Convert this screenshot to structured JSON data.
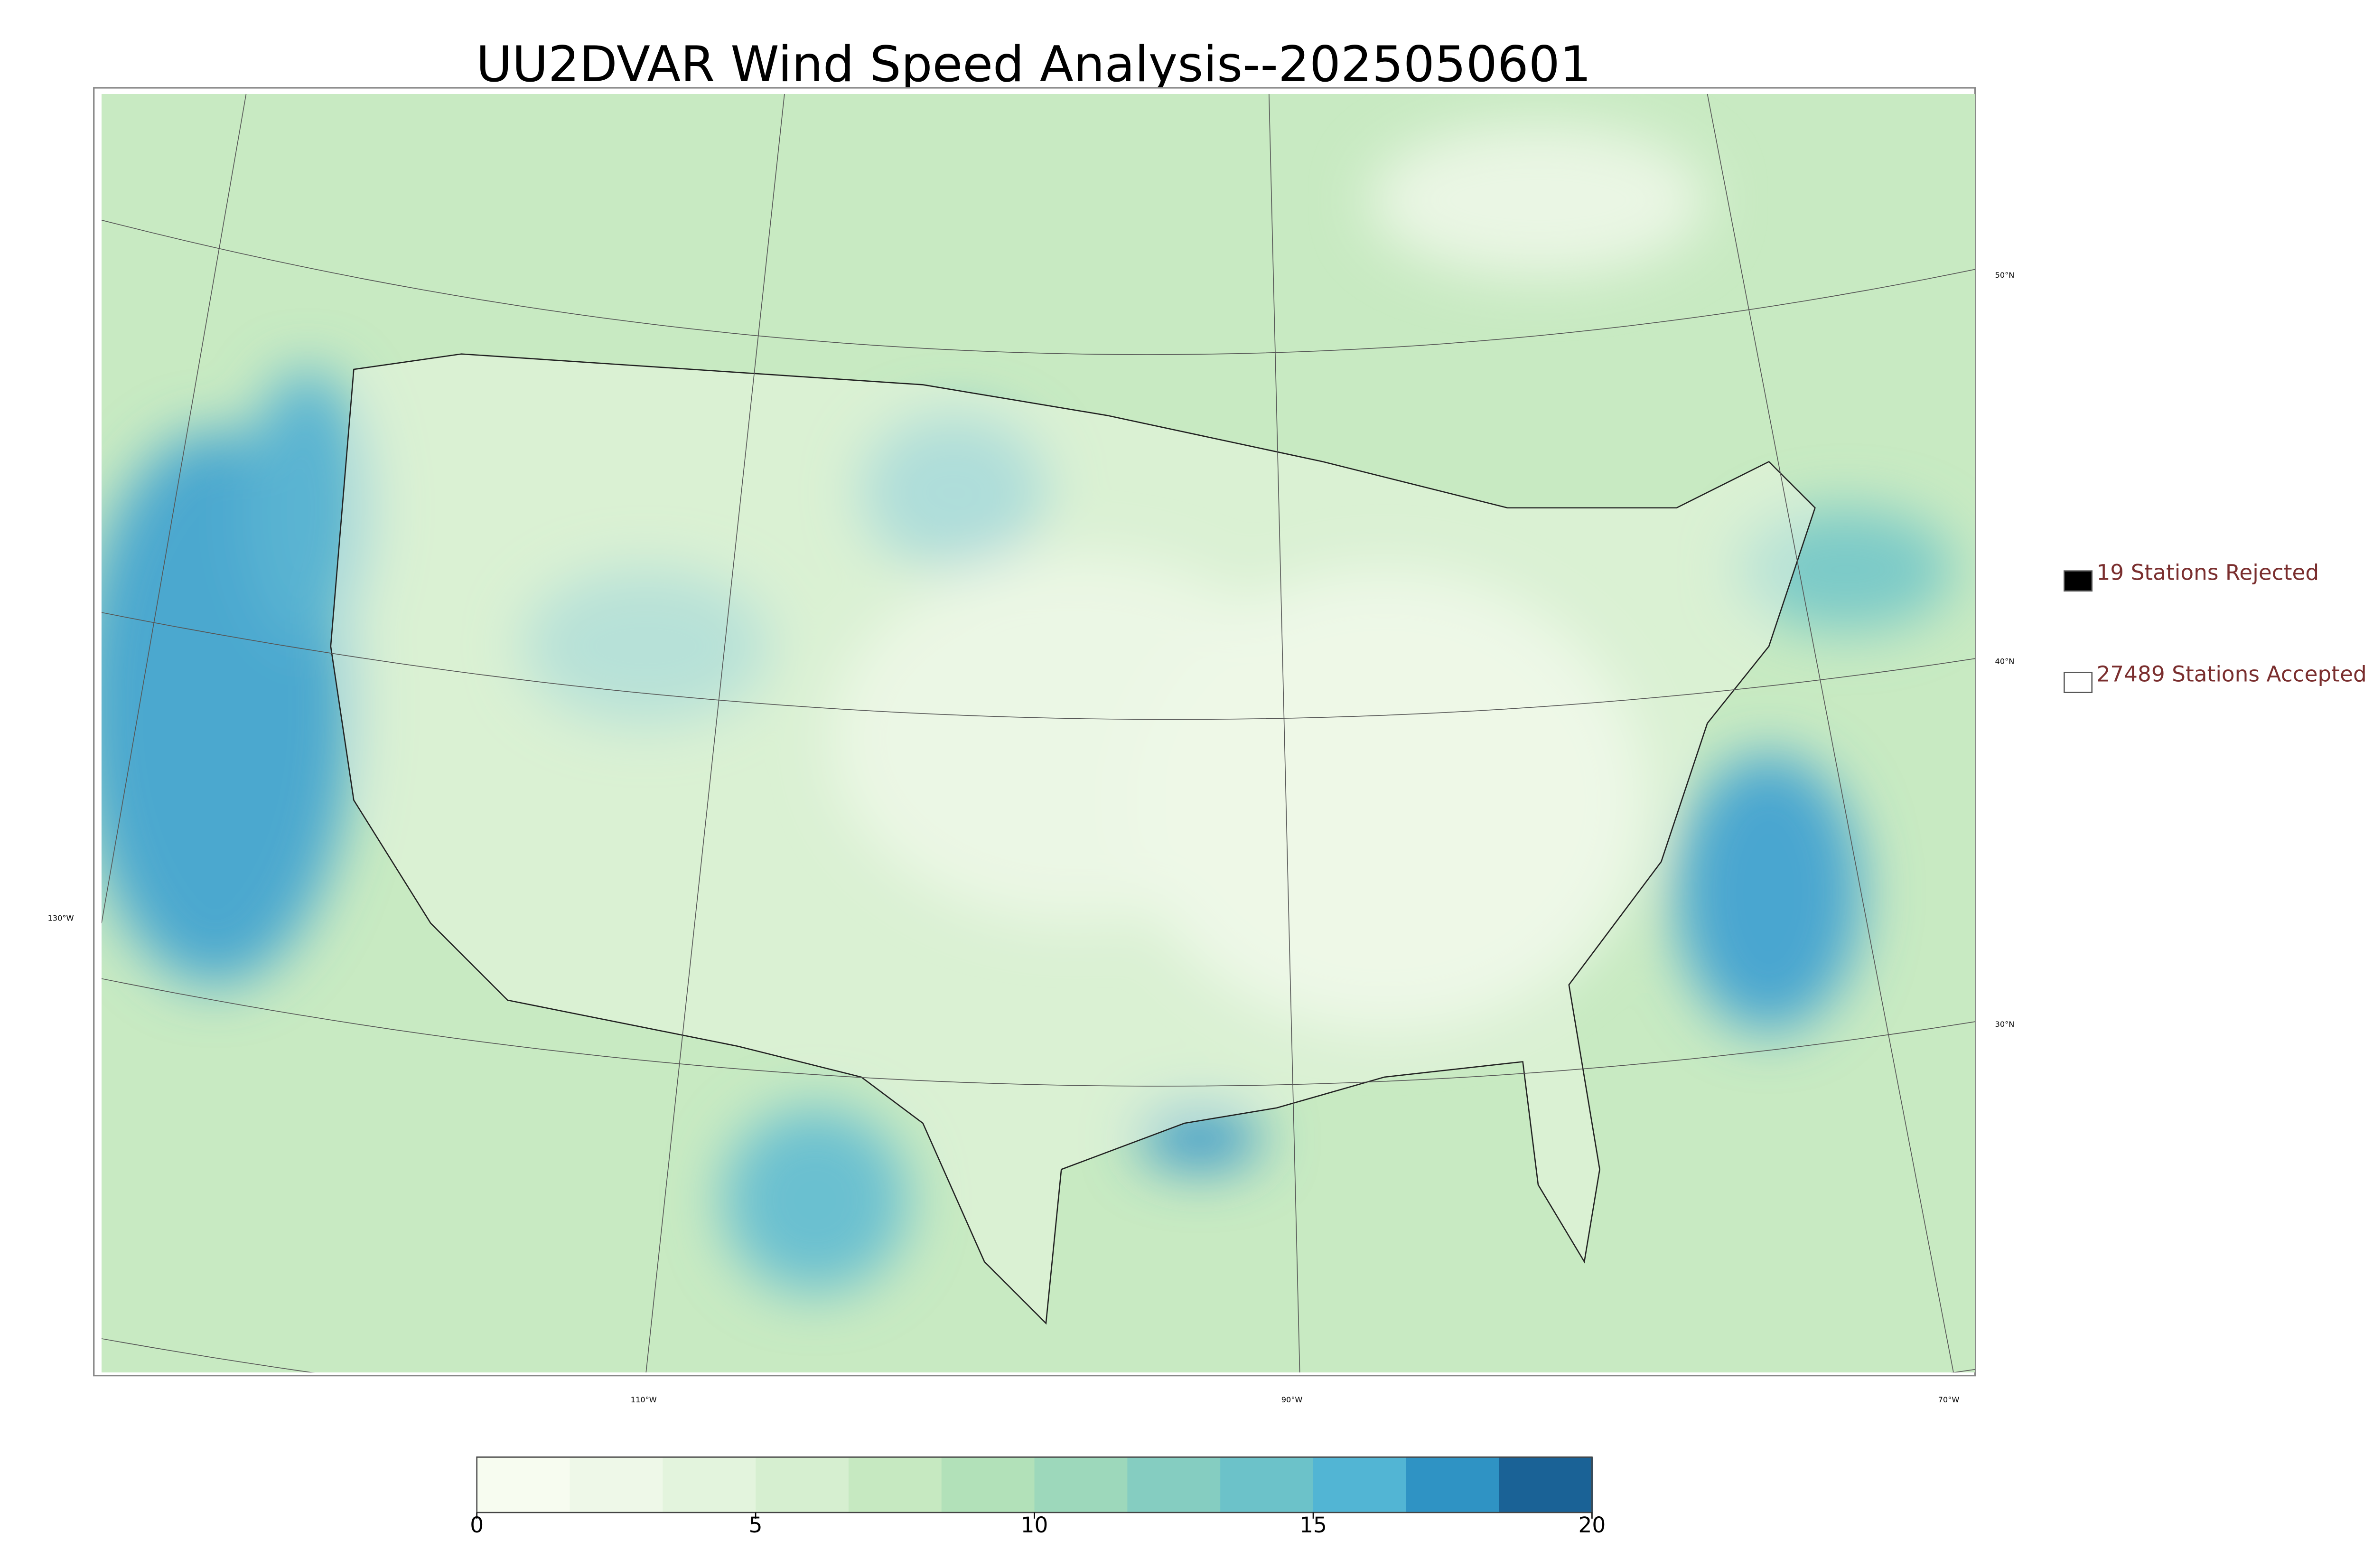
{
  "title": "UU2DVAR Wind Speed Analysis--2025050601",
  "legend": [
    {
      "label": "19 Stations Rejected",
      "fill": "#000000"
    },
    {
      "label": "27489 Stations Accepted",
      "fill": "#ffffff"
    }
  ],
  "colorbar": {
    "lim": [
      0,
      20
    ],
    "ticks": [
      0,
      5,
      10,
      15,
      20
    ],
    "colors": [
      "#f7fcf0",
      "#eef8e8",
      "#e3f4dd",
      "#d6efd0",
      "#c6e9c1",
      "#b2e1b9",
      "#9dd8bb",
      "#85cdc1",
      "#6cc2c9",
      "#52b5d4",
      "#2f93c4",
      "#1a6296"
    ]
  },
  "map": {
    "lat_labels": [
      "50°N",
      "40°N",
      "30°N"
    ],
    "lon_labels": [
      "130°W",
      "110°W",
      "90°W",
      "70°W"
    ]
  }
}
